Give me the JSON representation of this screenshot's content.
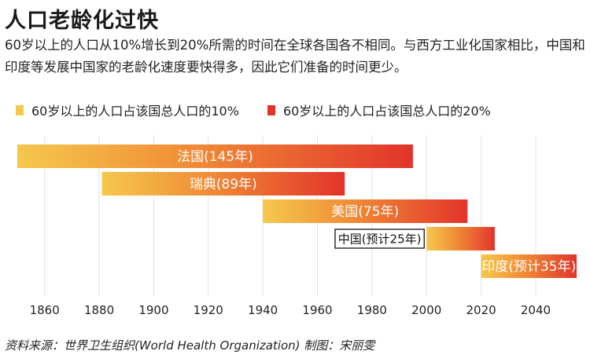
{
  "title": "人口老龄化过快",
  "subtitle": "60岁以上的人口从10%增长到20%所需的时间在全球各国各不相同。与西方工业化国家相比，中国和印度等发展中国家的老龄化速度要快得多，因此它们准备的时间更少。",
  "legend": {
    "start_label": "60岁以上的人口占该国总人口的10%",
    "end_label": "60岁以上的人口占该国总人口的20%",
    "start_color": "#f5c84c",
    "end_color": "#e2342a"
  },
  "source": "资料来源：世界卫生组织(World Health Organization)   制图：宋丽雯",
  "chart_data": {
    "type": "bar",
    "orientation": "horizontal-range",
    "xlim": [
      1850,
      2055
    ],
    "x_ticks": [
      1860,
      1880,
      1900,
      1920,
      1940,
      1960,
      1980,
      2000,
      2020,
      2040
    ],
    "grid": true,
    "series": [
      {
        "label": "法国(145年)",
        "start": 1850,
        "end": 1995,
        "label_style": "inside"
      },
      {
        "label": "瑞典(89年)",
        "start": 1881,
        "end": 1970,
        "label_style": "inside"
      },
      {
        "label": "美国(75年)",
        "start": 1940,
        "end": 2015,
        "label_style": "inside"
      },
      {
        "label": "中国(预计25年)",
        "start": 2000,
        "end": 2025,
        "label_style": "boxed-left"
      },
      {
        "label": "印度(预计35年)",
        "start": 2020,
        "end": 2055,
        "label_style": "inside"
      }
    ]
  }
}
